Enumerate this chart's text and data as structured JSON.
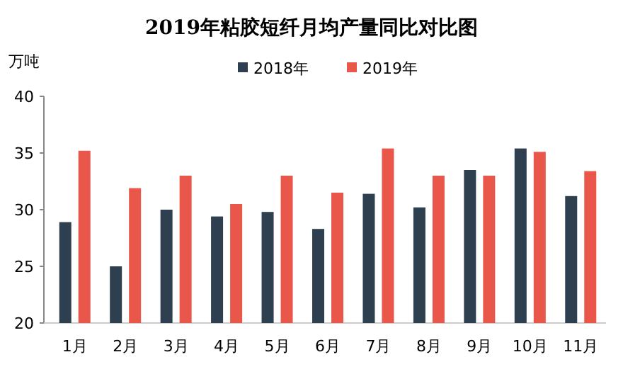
{
  "chart_data": {
    "type": "bar",
    "title": "2019年粘胶短纤月均产量同比对比图",
    "ylabel": "万吨",
    "categories": [
      "1月",
      "2月",
      "3月",
      "4月",
      "5月",
      "6月",
      "7月",
      "8月",
      "9月",
      "10月",
      "11月"
    ],
    "series": [
      {
        "name": "2018年",
        "color": "#2e3f4f",
        "values": [
          28.9,
          25.0,
          30.0,
          29.4,
          29.8,
          28.3,
          31.4,
          30.2,
          33.5,
          35.4,
          31.2
        ]
      },
      {
        "name": "2019年",
        "color": "#e8574a",
        "values": [
          35.2,
          31.9,
          33.0,
          30.5,
          33.0,
          31.5,
          35.4,
          33.0,
          33.0,
          35.1,
          33.4
        ]
      }
    ],
    "ylim": [
      20,
      40
    ],
    "yticks": [
      20,
      25,
      30,
      35,
      40
    ],
    "grid": false,
    "legend": "top"
  }
}
